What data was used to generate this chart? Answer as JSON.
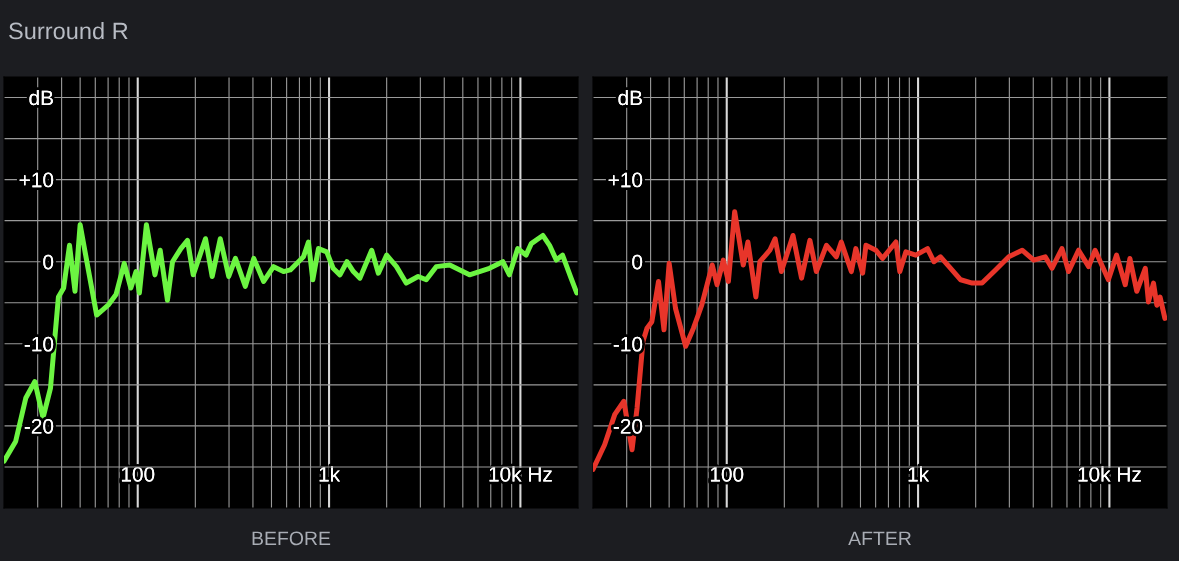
{
  "chart_data": [
    {
      "type": "line",
      "title": "Surround R",
      "xlabel": "BEFORE",
      "log": "x",
      "grid": true,
      "xlim": [
        20,
        20000
      ],
      "ylim": [
        -30,
        22.5
      ],
      "xticks": [
        {
          "value": 30,
          "label": null
        },
        {
          "value": 40,
          "label": null
        },
        {
          "value": 50,
          "label": null
        },
        {
          "value": 60,
          "label": null
        },
        {
          "value": 70,
          "label": null
        },
        {
          "value": 80,
          "label": null
        },
        {
          "value": 90,
          "label": null
        },
        100,
        {
          "value": 200,
          "label": null
        },
        {
          "value": 300,
          "label": null
        },
        {
          "value": 400,
          "label": null
        },
        {
          "value": 500,
          "label": null
        },
        {
          "value": 600,
          "label": null
        },
        {
          "value": 700,
          "label": null
        },
        {
          "value": 800,
          "label": null
        },
        {
          "value": 900,
          "label": null
        },
        {
          "value": 1000,
          "label": "1k"
        },
        {
          "value": 2000,
          "label": null
        },
        {
          "value": 3000,
          "label": null
        },
        {
          "value": 4000,
          "label": null
        },
        {
          "value": 5000,
          "label": null
        },
        {
          "value": 6000,
          "label": null
        },
        {
          "value": 7000,
          "label": null
        },
        {
          "value": 8000,
          "label": null
        },
        {
          "value": 9000,
          "label": null
        },
        {
          "value": 10000,
          "label": "10k Hz"
        }
      ],
      "yticks": [
        {
          "value": -25,
          "label": null
        },
        -20,
        {
          "value": -15,
          "label": null
        },
        -10,
        {
          "value": -5,
          "label": null
        },
        0,
        {
          "value": 5,
          "label": null
        },
        {
          "value": 10,
          "label": "+10"
        },
        {
          "value": 15,
          "label": null
        },
        {
          "value": 20,
          "label": "dB"
        }
      ],
      "series": [
        {
          "color": "#6cf542",
          "x": [
            20,
            23,
            26,
            29,
            32,
            35,
            37,
            38.5,
            41,
            44,
            47,
            50,
            55,
            61,
            70,
            77,
            85,
            92,
            98,
            102,
            111,
            123,
            131,
            143,
            152,
            168,
            182,
            195,
            226,
            245,
            270,
            299,
            324,
            365,
            404,
            455,
            513,
            578,
            627,
            735,
            780,
            822,
            880,
            972,
            1050,
            1140,
            1240,
            1340,
            1450,
            1670,
            1810,
            2000,
            2250,
            2530,
            2920,
            3220,
            3630,
            4270,
            5420,
            6890,
            8090,
            8760,
            9680,
            10700,
            11400,
            13100,
            14200,
            15400,
            16600,
            18400,
            19700
          ],
          "values": [
            -24.3,
            -21.9,
            -16.6,
            -14.6,
            -19.0,
            -15.4,
            -8.9,
            -4.3,
            -3.2,
            2.0,
            -3.6,
            4.5,
            -0.8,
            -6.5,
            -5.3,
            -4.0,
            -0.2,
            -3.2,
            -1.2,
            -3.8,
            4.5,
            -1.6,
            1.4,
            -4.7,
            0,
            1.6,
            2.6,
            -1.6,
            2.8,
            -1.8,
            2.8,
            -1.8,
            0.4,
            -3.0,
            0.4,
            -2.4,
            -0.6,
            -1.2,
            -1.0,
            0.6,
            2.4,
            -2.2,
            1.6,
            1.2,
            -0.8,
            -1.6,
            0,
            -1.2,
            -2.0,
            1.4,
            -1.4,
            0.8,
            -0.6,
            -2.6,
            -1.8,
            -2.2,
            -0.6,
            -0.4,
            -1.6,
            -0.8,
            0,
            -1.6,
            1.6,
            0.8,
            2.2,
            3.2,
            2.0,
            0.2,
            0.8,
            -2.0,
            -3.8
          ]
        }
      ]
    },
    {
      "type": "line",
      "xlabel": "AFTER",
      "log": "x",
      "grid": true,
      "xlim": [
        20,
        20000
      ],
      "ylim": [
        -30,
        22.5
      ],
      "xticks": [
        {
          "value": 30,
          "label": null
        },
        {
          "value": 40,
          "label": null
        },
        {
          "value": 50,
          "label": null
        },
        {
          "value": 60,
          "label": null
        },
        {
          "value": 70,
          "label": null
        },
        {
          "value": 80,
          "label": null
        },
        {
          "value": 90,
          "label": null
        },
        100,
        {
          "value": 200,
          "label": null
        },
        {
          "value": 300,
          "label": null
        },
        {
          "value": 400,
          "label": null
        },
        {
          "value": 500,
          "label": null
        },
        {
          "value": 600,
          "label": null
        },
        {
          "value": 700,
          "label": null
        },
        {
          "value": 800,
          "label": null
        },
        {
          "value": 900,
          "label": null
        },
        {
          "value": 1000,
          "label": "1k"
        },
        {
          "value": 2000,
          "label": null
        },
        {
          "value": 3000,
          "label": null
        },
        {
          "value": 4000,
          "label": null
        },
        {
          "value": 5000,
          "label": null
        },
        {
          "value": 6000,
          "label": null
        },
        {
          "value": 7000,
          "label": null
        },
        {
          "value": 8000,
          "label": null
        },
        {
          "value": 9000,
          "label": null
        },
        {
          "value": 10000,
          "label": "10k Hz"
        }
      ],
      "yticks": [
        {
          "value": -25,
          "label": null
        },
        -20,
        {
          "value": -15,
          "label": null
        },
        -10,
        {
          "value": -5,
          "label": null
        },
        0,
        {
          "value": 5,
          "label": null
        },
        {
          "value": 10,
          "label": "+10"
        },
        {
          "value": 15,
          "label": null
        },
        {
          "value": 20,
          "label": "dB"
        }
      ],
      "series": [
        {
          "color": "#e8352a",
          "x": [
            20,
            23,
            26,
            29,
            32,
            34,
            36.5,
            38.3,
            40.6,
            44,
            47,
            50,
            54,
            61,
            67,
            74,
            84,
            89,
            96,
            102,
            110,
            122,
            129,
            142,
            149,
            168,
            179,
            193,
            222,
            246,
            272,
            294,
            332,
            374,
            397,
            448,
            473,
            513,
            534,
            602,
            652,
            706,
            766,
            803,
            863,
            973,
            1120,
            1210,
            1310,
            1480,
            1670,
            1920,
            2160,
            2540,
            2980,
            3500,
            4020,
            4620,
            5010,
            5650,
            6120,
            6900,
            7790,
            8420,
            9880,
            10900,
            12100,
            12800,
            13900,
            15400,
            16000,
            17000,
            17700,
            18400,
            19500
          ],
          "values": [
            -25.3,
            -22.3,
            -18.6,
            -17.0,
            -22.9,
            -17.8,
            -9.7,
            -8.1,
            -7.3,
            -2.4,
            -8.3,
            -0.2,
            -5.7,
            -10.3,
            -8.1,
            -5.3,
            -0.4,
            -2.8,
            0.2,
            -2.4,
            6.1,
            -0.4,
            2.4,
            -4.3,
            0,
            1.4,
            2.8,
            -1.2,
            3.2,
            -2.0,
            2.6,
            -1.2,
            2.0,
            0.6,
            2.4,
            -1.2,
            1.6,
            -1.4,
            2.0,
            1.4,
            0.4,
            1.4,
            2.4,
            -1.2,
            1.2,
            0.8,
            1.6,
            0,
            0.6,
            -0.8,
            -2.2,
            -2.6,
            -2.6,
            -1.0,
            0.6,
            1.4,
            0.2,
            0.6,
            -0.8,
            1.6,
            -1.2,
            1.4,
            -0.6,
            1.4,
            -2.2,
            0.8,
            -2.8,
            0.4,
            -3.6,
            -0.8,
            -4.9,
            -2.6,
            -5.3,
            -4.3,
            -6.9
          ]
        }
      ]
    }
  ]
}
